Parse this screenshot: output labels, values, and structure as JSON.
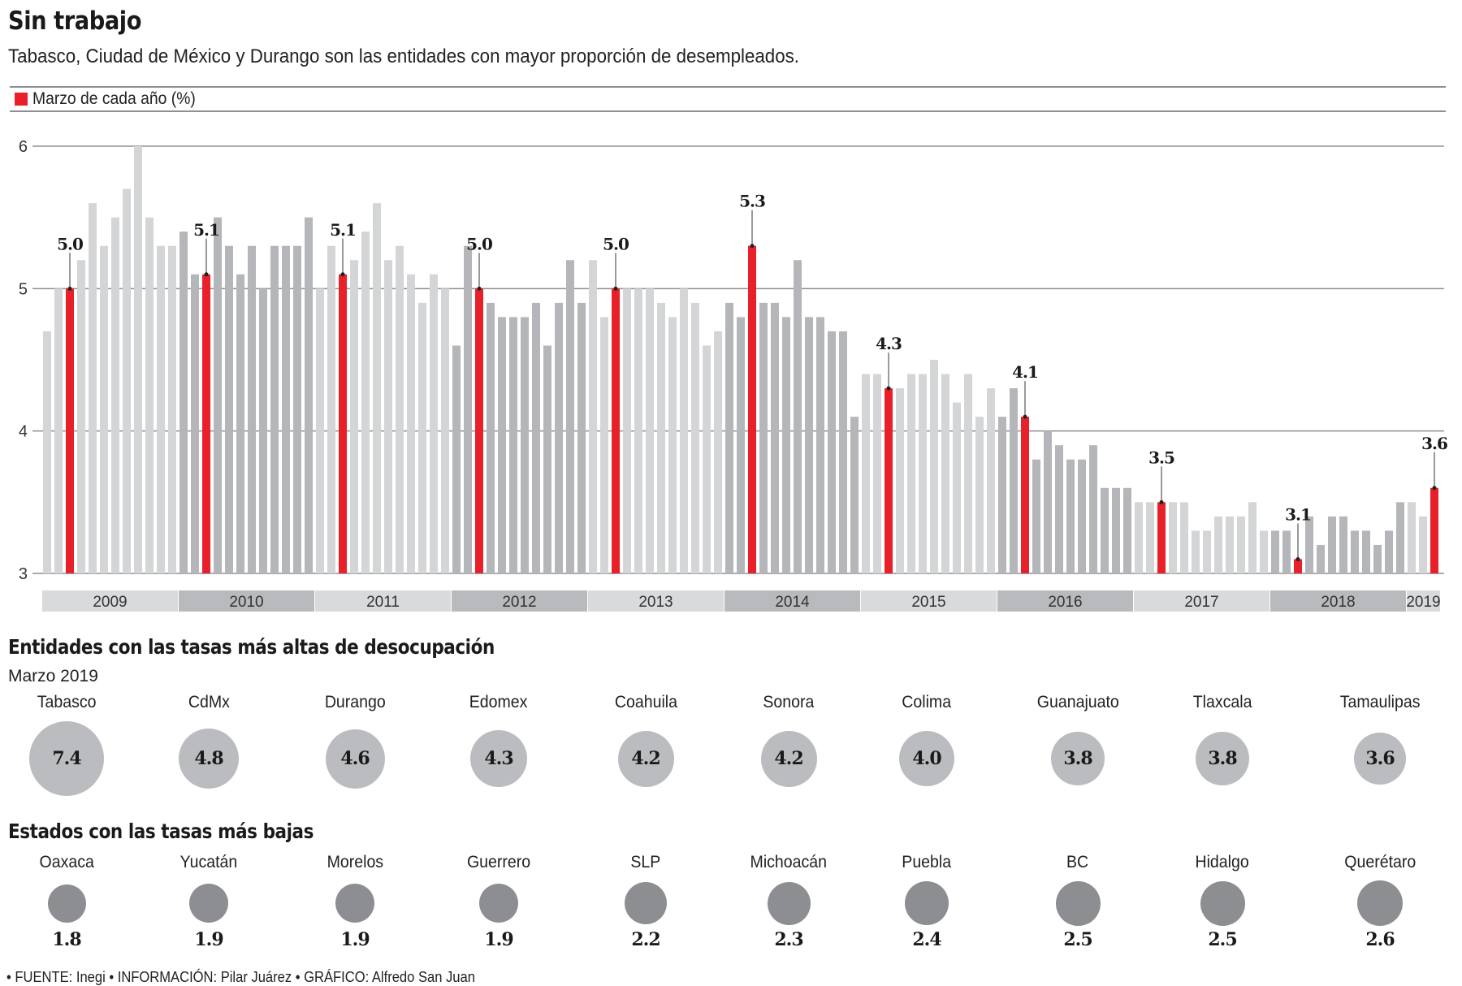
{
  "header": {
    "title": "Sin trabajo",
    "subtitle": "Tabasco, Ciudad de México y Durango son las entidades con mayor proporción de desempleados."
  },
  "legend": {
    "label": "Marzo de cada año (%)",
    "swatch_color": "#e8202a"
  },
  "colors": {
    "highlight": "#e8202a",
    "bar_light": "#d4d5d7",
    "bar_dark": "#b5b6b9",
    "band_light": "#d9dadc",
    "band_dark": "#b9babd",
    "circle_high": "#bbbcbf",
    "circle_low": "#8d8e91"
  },
  "chart_data": {
    "type": "bar",
    "title": "Sin trabajo",
    "subtitle": "Tabasco, Ciudad de México y Durango son las entidades con mayor proporción de desempleados.",
    "xlabel": "",
    "ylabel": "",
    "ylim": [
      3,
      6
    ],
    "yticks": [
      3,
      4,
      5,
      6
    ],
    "grid": true,
    "legend": [
      {
        "label": "Marzo de cada año (%)",
        "position": "top-left"
      }
    ],
    "highlight_month_index": 2,
    "years": [
      {
        "label": "2009",
        "values": [
          4.7,
          5.0,
          5.0,
          5.2,
          5.6,
          5.3,
          5.5,
          5.7,
          6.0,
          5.5,
          5.3,
          5.3
        ]
      },
      {
        "label": "2010",
        "values": [
          5.4,
          5.1,
          5.1,
          5.5,
          5.3,
          5.1,
          5.3,
          5.0,
          5.3,
          5.3,
          5.3,
          5.5
        ]
      },
      {
        "label": "2011",
        "values": [
          5.0,
          5.3,
          5.1,
          5.2,
          5.4,
          5.6,
          5.2,
          5.3,
          5.1,
          4.9,
          5.1,
          5.0
        ]
      },
      {
        "label": "2012",
        "values": [
          4.6,
          5.3,
          5.0,
          4.9,
          4.8,
          4.8,
          4.8,
          4.9,
          4.6,
          4.9,
          5.2,
          4.9
        ]
      },
      {
        "label": "2013",
        "values": [
          5.2,
          4.8,
          5.0,
          5.0,
          5.0,
          5.0,
          4.9,
          4.8,
          5.0,
          4.9,
          4.6,
          4.7
        ]
      },
      {
        "label": "2014",
        "values": [
          4.9,
          4.8,
          5.3,
          4.9,
          4.9,
          4.8,
          5.2,
          4.8,
          4.8,
          4.7,
          4.7,
          4.1
        ]
      },
      {
        "label": "2015",
        "values": [
          4.4,
          4.4,
          4.3,
          4.3,
          4.4,
          4.4,
          4.5,
          4.4,
          4.2,
          4.4,
          4.1,
          4.3
        ]
      },
      {
        "label": "2016",
        "values": [
          4.1,
          4.3,
          4.1,
          3.8,
          4.0,
          3.9,
          3.8,
          3.8,
          3.9,
          3.6,
          3.6,
          3.6
        ]
      },
      {
        "label": "2017",
        "values": [
          3.5,
          3.5,
          3.5,
          3.5,
          3.5,
          3.3,
          3.3,
          3.4,
          3.4,
          3.4,
          3.5,
          3.3
        ]
      },
      {
        "label": "2018",
        "values": [
          3.3,
          3.3,
          3.1,
          3.4,
          3.2,
          3.4,
          3.4,
          3.3,
          3.3,
          3.2,
          3.3,
          3.5
        ]
      },
      {
        "label": "2019",
        "values": [
          3.5,
          3.4,
          3.6
        ]
      }
    ],
    "annotations": [
      {
        "year": "2009",
        "label": "5.0"
      },
      {
        "year": "2010",
        "label": "5.1"
      },
      {
        "year": "2011",
        "label": "5.1"
      },
      {
        "year": "2012",
        "label": "5.0"
      },
      {
        "year": "2013",
        "label": "5.0"
      },
      {
        "year": "2014",
        "label": "5.3"
      },
      {
        "year": "2015",
        "label": "4.3"
      },
      {
        "year": "2016",
        "label": "4.1"
      },
      {
        "year": "2017",
        "label": "3.5"
      },
      {
        "year": "2018",
        "label": "3.1"
      },
      {
        "year": "2019",
        "label": "3.6"
      }
    ]
  },
  "highest": {
    "title": "Entidades con las tasas más altas de desocupación",
    "subtitle": "Marzo 2019",
    "items": [
      {
        "name": "Tabasco",
        "value": "7.4",
        "rate": 7.4
      },
      {
        "name": "CdMx",
        "value": "4.8",
        "rate": 4.8
      },
      {
        "name": "Durango",
        "value": "4.6",
        "rate": 4.6
      },
      {
        "name": "Edomex",
        "value": "4.3",
        "rate": 4.3
      },
      {
        "name": "Coahuila",
        "value": "4.2",
        "rate": 4.2
      },
      {
        "name": "Sonora",
        "value": "4.2",
        "rate": 4.2
      },
      {
        "name": "Colima",
        "value": "4.0",
        "rate": 4.0
      },
      {
        "name": "Guanajuato",
        "value": "3.8",
        "rate": 3.8
      },
      {
        "name": "Tlaxcala",
        "value": "3.8",
        "rate": 3.8
      },
      {
        "name": "Tamaulipas",
        "value": "3.6",
        "rate": 3.6
      }
    ]
  },
  "lowest": {
    "title": "Estados con las tasas más bajas",
    "items": [
      {
        "name": "Oaxaca",
        "value": "1.8",
        "rate": 1.8
      },
      {
        "name": "Yucatán",
        "value": "1.9",
        "rate": 1.9
      },
      {
        "name": "Morelos",
        "value": "1.9",
        "rate": 1.9
      },
      {
        "name": "Guerrero",
        "value": "1.9",
        "rate": 1.9
      },
      {
        "name": "SLP",
        "value": "2.2",
        "rate": 2.2
      },
      {
        "name": "Michoacán",
        "value": "2.3",
        "rate": 2.3
      },
      {
        "name": "Puebla",
        "value": "2.4",
        "rate": 2.4
      },
      {
        "name": "BC",
        "value": "2.5",
        "rate": 2.5
      },
      {
        "name": "Hidalgo",
        "value": "2.5",
        "rate": 2.5
      },
      {
        "name": "Querétaro",
        "value": "2.6",
        "rate": 2.6
      }
    ]
  },
  "footer": {
    "text": "• FUENTE: Inegi • INFORMACIÓN: Pilar Juárez  • GRÁFICO: Alfredo San Juan"
  }
}
